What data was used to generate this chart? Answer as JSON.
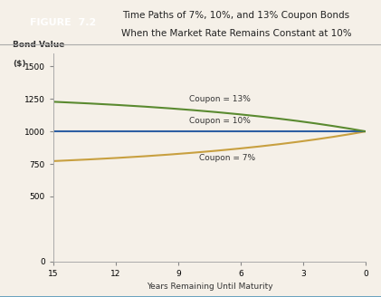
{
  "title_line1": "Time Paths of 7%, 10%, and 13% Coupon Bonds",
  "title_line2": "When the Market Rate Remains Constant at 10%",
  "figure_label": "FIGURE  7.2",
  "ylabel_line1": "Bond Value",
  "ylabel_line2": "($)",
  "xlabel": "Years Remaining Until Maturity",
  "market_rate": 0.1,
  "face_value": 1000,
  "coupon_rates": [
    0.07,
    0.1,
    0.13
  ],
  "coupon_labels": [
    "Coupon = 7%",
    "Coupon = 10%",
    "Coupon = 13%"
  ],
  "line_colors": [
    "#c8a040",
    "#2e5fa3",
    "#5a8a30"
  ],
  "years_max": 15,
  "ylim": [
    0,
    1600
  ],
  "yticks": [
    0,
    500,
    750,
    1000,
    1250,
    1500
  ],
  "xticks": [
    0,
    3,
    6,
    9,
    12,
    15
  ],
  "bg_color": "#f5f0e8",
  "header_bg": "#7babc8",
  "fig_label_bg": "#4a7fa5",
  "border_color": "#aaaaaa"
}
